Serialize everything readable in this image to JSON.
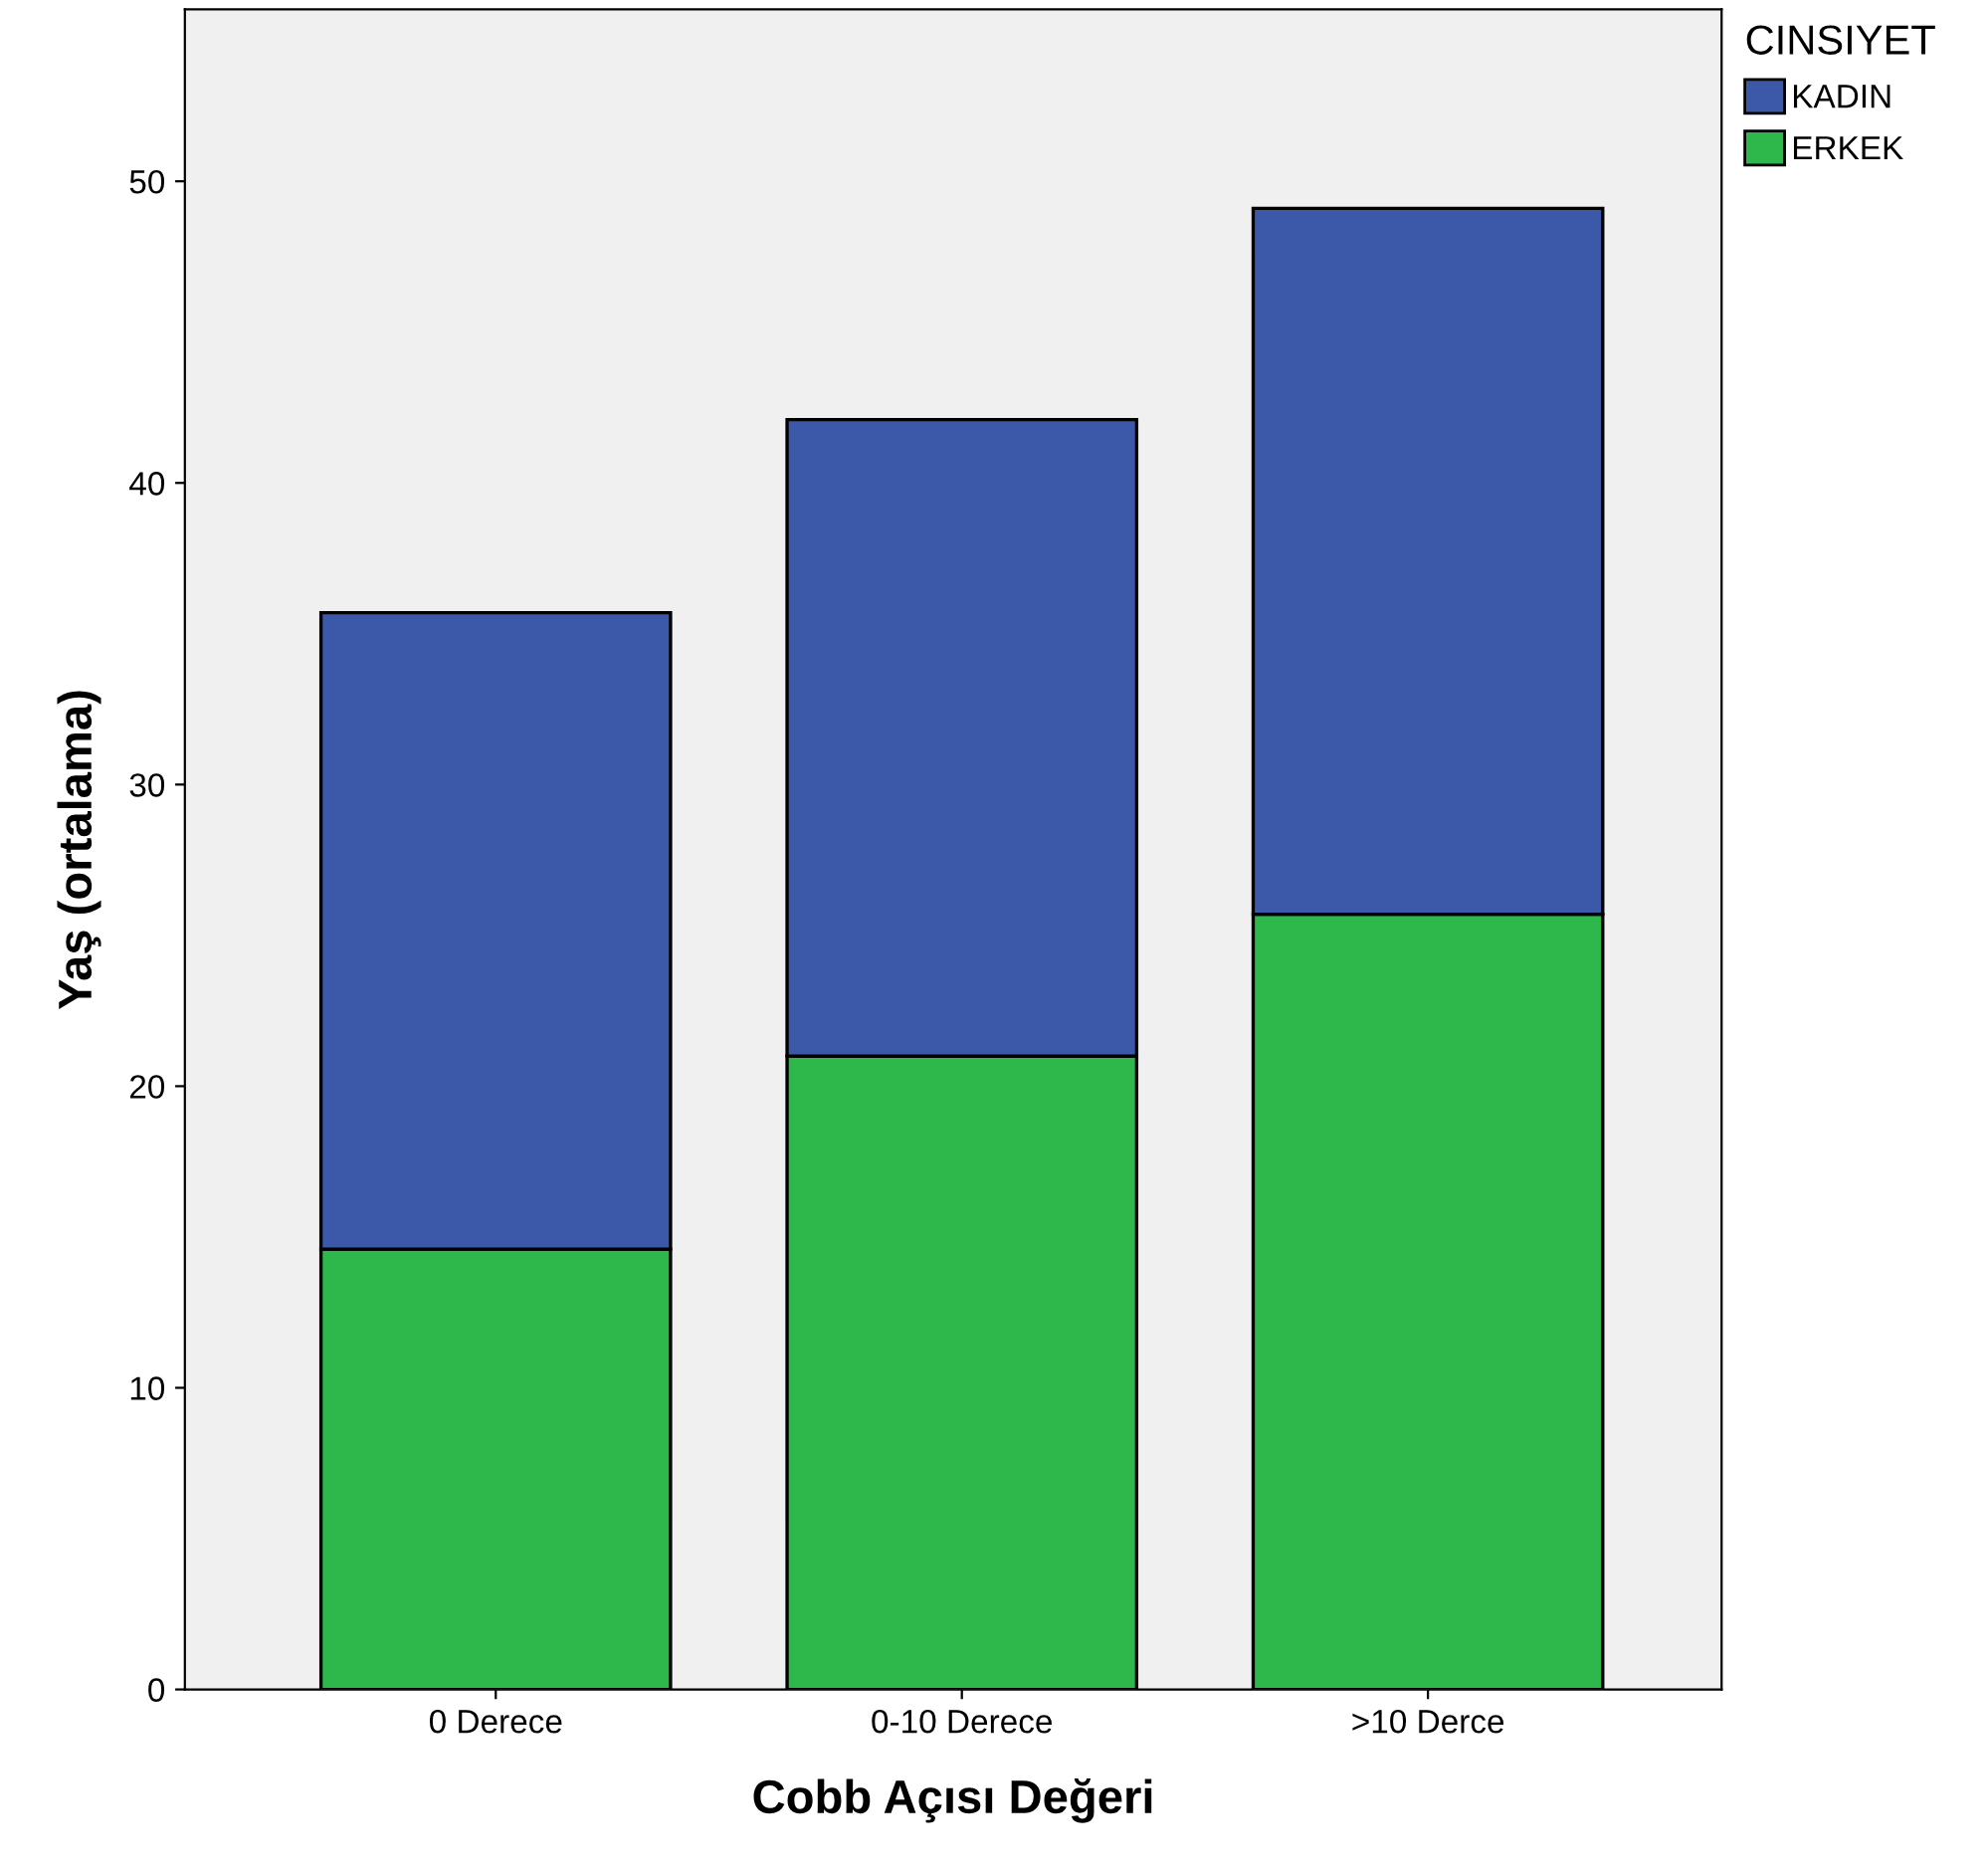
{
  "chart_data": {
    "type": "bar",
    "stacked": true,
    "xlabel": "Cobb Açısı Değeri",
    "ylabel": "Yaş (ortalama)",
    "legend_title": "CINSIYET",
    "categories": [
      "0 Derece",
      "0-10 Derece",
      ">10 Derce"
    ],
    "series": [
      {
        "name": "ERKEK",
        "color": "#2eb74a",
        "values": [
          14.6,
          21.0,
          25.7
        ]
      },
      {
        "name": "KADIN",
        "color": "#3c58a8",
        "values": [
          21.1,
          21.1,
          23.4
        ]
      }
    ],
    "ylim": [
      0,
      55.7
    ],
    "yticks": [
      0,
      10,
      20,
      30,
      40,
      50
    ],
    "grid": false,
    "legend": "top right"
  }
}
